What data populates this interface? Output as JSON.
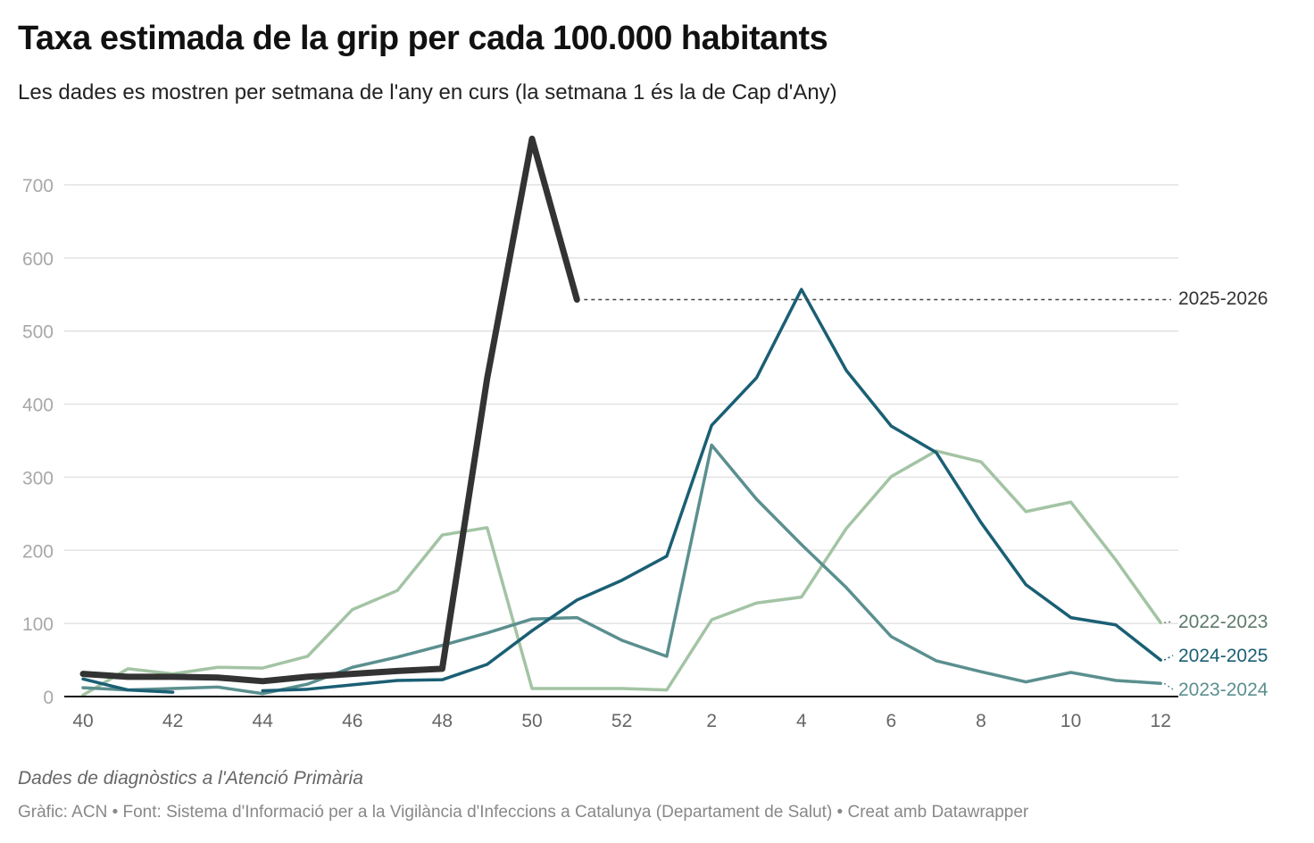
{
  "header": {
    "title": "Taxa estimada de la grip per cada 100.000 habitants",
    "subtitle": "Les dades es mostren per setmana de l'any en curs (la setmana 1 és la de Cap d'Any)"
  },
  "footer": {
    "notes": "Dades de diagnòstics a l'Atenció Primària",
    "source": "Gràfic: ACN • Font: Sistema d'Informació per a la Vigilància d'Infeccions a Catalunya (Departament de Salut) • Creat amb Datawrapper"
  },
  "chart_data": {
    "type": "line",
    "title": "Taxa estimada de la grip per cada 100.000 habitants",
    "subtitle": "Les dades es mostren per setmana de l'any en curs (la setmana 1 és la de Cap d'Any)",
    "xlabel": "",
    "ylabel": "",
    "x": [
      "40",
      "41",
      "42",
      "43",
      "44",
      "45",
      "46",
      "47",
      "48",
      "49",
      "50",
      "51",
      "52",
      "1",
      "2",
      "3",
      "4",
      "5",
      "6",
      "7",
      "8",
      "9",
      "10",
      "11",
      "12"
    ],
    "x_tick_labels": [
      "40",
      "42",
      "44",
      "46",
      "48",
      "50",
      "52",
      "2",
      "4",
      "6",
      "8",
      "10",
      "12"
    ],
    "y_ticks": [
      0,
      100,
      200,
      300,
      400,
      500,
      600,
      700
    ],
    "ylim": [
      0,
      770
    ],
    "grid": "horizontal",
    "legend": "direct labels at right end of lines",
    "series": [
      {
        "name": "2022-2023",
        "color": "#a3c4a4",
        "values": [
          2,
          38,
          31,
          40,
          39,
          55,
          119,
          145,
          221,
          231,
          11,
          11,
          11,
          9,
          105,
          128,
          136,
          230,
          301,
          336,
          321,
          253,
          266,
          187,
          101
        ]
      },
      {
        "name": "2023-2024",
        "color": "#5b8f8f",
        "values": [
          12,
          9,
          11,
          13,
          4,
          17,
          40,
          54,
          70,
          87,
          106,
          108,
          77,
          55,
          344,
          270,
          208,
          149,
          82,
          49,
          34,
          20,
          33,
          22,
          18
        ]
      },
      {
        "name": "2024-2025",
        "color": "#1a5f74",
        "values": [
          24,
          9,
          6,
          null,
          8,
          10,
          16,
          22,
          23,
          44,
          90,
          132,
          159,
          192,
          371,
          436,
          557,
          446,
          370,
          334,
          238,
          153,
          108,
          98,
          50
        ]
      },
      {
        "name": "2025-2026",
        "color": "#333333",
        "values": [
          31,
          27,
          27,
          26,
          21,
          27,
          31,
          35,
          38,
          435,
          763,
          543,
          null,
          null,
          null,
          null,
          null,
          null,
          null,
          null,
          null,
          null,
          null,
          null,
          null
        ]
      }
    ]
  }
}
